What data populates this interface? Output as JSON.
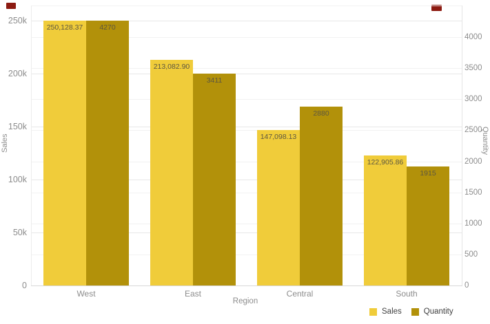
{
  "colors": {
    "sales": "#F0CC3A",
    "quantity": "#B2910A",
    "axis_text": "#8C8C8C",
    "data_label_text": "#5C5640",
    "legend_text": "#3F3F3F",
    "gridline_major": "#E7E7E7",
    "gridline_minor": "#F2F2F2",
    "baseline": "#D8D8D8",
    "corner_mark": "#8C1A11"
  },
  "chart_data": {
    "type": "bar",
    "subtype": "clustered-dual-axis",
    "title": "",
    "categories": [
      "West",
      "East",
      "Central",
      "South"
    ],
    "series": [
      {
        "name": "Sales",
        "axis": "left",
        "color": "#F0CC3A",
        "values": [
          250128.37,
          213082.9,
          147098.13,
          122905.86
        ],
        "labels": [
          "250,128.37",
          "213,082.90",
          "147,098.13",
          "122,905.86"
        ]
      },
      {
        "name": "Quantity",
        "axis": "right",
        "color": "#B2910A",
        "values": [
          4270,
          3411,
          2880,
          1915
        ],
        "labels": [
          "4270",
          "3411",
          "2880",
          "1915"
        ]
      }
    ],
    "x_axis": {
      "title": "Region"
    },
    "left_axis": {
      "title": "Sales",
      "max": 264500,
      "ticks": [
        {
          "label": "250k",
          "value": 250000
        },
        {
          "label": "200k",
          "value": 200000
        },
        {
          "label": "150k",
          "value": 150000
        },
        {
          "label": "100k",
          "value": 100000
        },
        {
          "label": "50k",
          "value": 50000
        },
        {
          "label": "0",
          "value": 0
        }
      ]
    },
    "right_axis": {
      "title": "Quantity",
      "max": 4510,
      "ticks": [
        {
          "label": "4000",
          "value": 4000
        },
        {
          "label": "3500",
          "value": 3500
        },
        {
          "label": "3000",
          "value": 3000
        },
        {
          "label": "2500",
          "value": 2500
        },
        {
          "label": "2000",
          "value": 2000
        },
        {
          "label": "1500",
          "value": 1500
        },
        {
          "label": "1000",
          "value": 1000
        },
        {
          "label": "500",
          "value": 500
        },
        {
          "label": "0",
          "value": 0
        }
      ]
    },
    "legend": {
      "position": "bottom-right",
      "items": [
        {
          "label": "Sales",
          "color": "#F0CC3A"
        },
        {
          "label": "Quantity",
          "color": "#B2910A"
        }
      ]
    },
    "grid": true
  }
}
